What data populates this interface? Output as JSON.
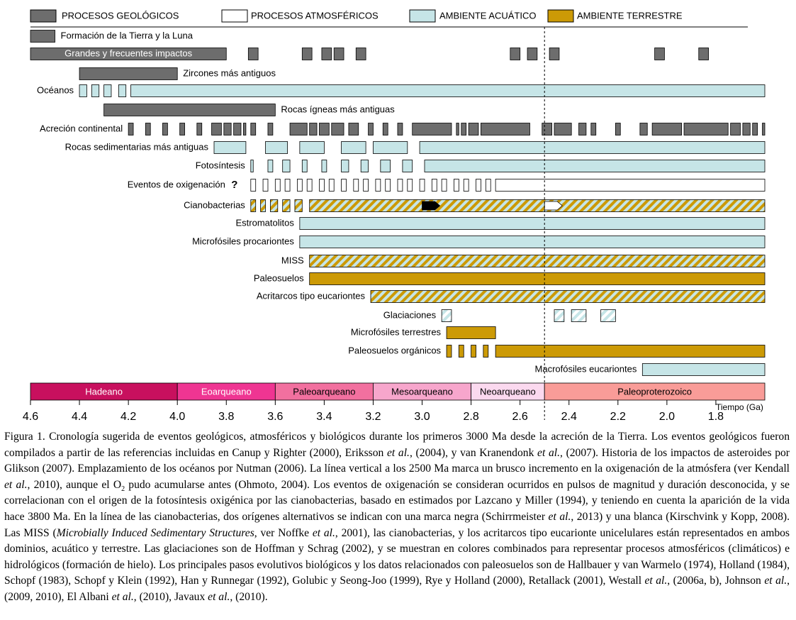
{
  "chart_data": {
    "type": "timeline",
    "xlabel": "Tiempo (Ga)",
    "xlim": [
      4.6,
      1.6
    ],
    "xticks": [
      4.6,
      4.4,
      4.2,
      {
        "value": 4.0,
        "label": "4.0"
      },
      3.8,
      3.6,
      3.4,
      3.2,
      {
        "value": 3.0,
        "label": "3.0"
      },
      2.8,
      2.6,
      2.4,
      2.2,
      {
        "value": 2.0,
        "label": "2.0"
      },
      1.8
    ],
    "reference_line": 2.5,
    "legend": [
      {
        "key": "geo",
        "label": "PROCESOS GEOLÓGICOS",
        "color": "#6d6d6d"
      },
      {
        "key": "atm",
        "label": "PROCESOS ATMOSFÉRICOS",
        "color": "#ffffff"
      },
      {
        "key": "aq",
        "label": "AMBIENTE ACUÁTICO",
        "color": "#c6e5e7"
      },
      {
        "key": "ter",
        "label": "AMBIENTE TERRESTRE",
        "color": "#cc9a06"
      }
    ],
    "rows": [
      {
        "label": "Formación de la Tierra y la Luna",
        "label_pos": "right",
        "style": [
          "geo"
        ],
        "segments": [
          [
            4.6,
            4.5
          ]
        ]
      },
      {
        "label": "Grandes y frecuentes impactos",
        "label_pos": "inside",
        "style": [
          "geo"
        ],
        "segments": [
          [
            4.6,
            3.8
          ],
          [
            3.71,
            3.67
          ],
          [
            3.49,
            3.45
          ],
          [
            3.41,
            3.37
          ],
          [
            3.36,
            3.32
          ],
          [
            3.27,
            3.23
          ],
          [
            2.64,
            2.6
          ],
          [
            2.57,
            2.53
          ],
          [
            2.48,
            2.44
          ],
          [
            2.05,
            2.01
          ],
          [
            1.87,
            1.83
          ]
        ]
      },
      {
        "label": "Zircones más antiguos",
        "label_pos": "right",
        "style": [
          "geo"
        ],
        "segments": [
          [
            4.4,
            4.0
          ]
        ]
      },
      {
        "label": "Océanos",
        "label_pos": "left",
        "style": [
          "aq"
        ],
        "segments": [
          [
            4.4,
            4.37
          ],
          [
            4.35,
            4.32
          ],
          [
            4.3,
            4.27
          ],
          [
            4.24,
            4.21
          ],
          [
            4.19,
            1.6
          ]
        ]
      },
      {
        "label": "Rocas ígneas más antiguas",
        "label_pos": "right",
        "style": [
          "geo"
        ],
        "segments": [
          [
            4.3,
            3.6
          ]
        ]
      },
      {
        "label": "Acreción continental",
        "label_pos": "left",
        "style": [
          "geo"
        ],
        "segments": [
          [
            4.2,
            4.18
          ],
          [
            4.13,
            4.11
          ],
          [
            4.06,
            4.04
          ],
          [
            3.99,
            3.97
          ],
          [
            3.92,
            3.9
          ],
          [
            3.86,
            3.82
          ],
          [
            3.81,
            3.78
          ],
          [
            3.77,
            3.74
          ],
          [
            3.73,
            3.72
          ],
          [
            3.7,
            3.68
          ],
          [
            3.63,
            3.61
          ],
          [
            3.54,
            3.47
          ],
          [
            3.46,
            3.43
          ],
          [
            3.42,
            3.38
          ],
          [
            3.37,
            3.32
          ],
          [
            3.3,
            3.26
          ],
          [
            3.22,
            3.2
          ],
          [
            3.16,
            3.14
          ],
          [
            3.1,
            3.08
          ],
          [
            3.04,
            2.88
          ],
          [
            2.86,
            2.85
          ],
          [
            2.84,
            2.82
          ],
          [
            2.81,
            2.77
          ],
          [
            2.76,
            2.56
          ],
          [
            2.51,
            2.47
          ],
          [
            2.46,
            2.39
          ],
          [
            2.36,
            2.33
          ],
          [
            2.31,
            2.29
          ],
          [
            2.21,
            2.19
          ],
          [
            2.11,
            2.08
          ],
          [
            2.06,
            1.94
          ],
          [
            1.93,
            1.75
          ],
          [
            1.74,
            1.7
          ],
          [
            1.69,
            1.66
          ],
          [
            1.65,
            1.63
          ],
          [
            1.61,
            1.6
          ]
        ]
      },
      {
        "label": "Rocas sedimentarias más antiguas",
        "label_pos": "left",
        "style": [
          "aq"
        ],
        "segments": [
          [
            3.85,
            3.72
          ],
          [
            3.64,
            3.55
          ],
          [
            3.5,
            3.4
          ],
          [
            3.33,
            3.23
          ],
          [
            3.2,
            3.06
          ],
          [
            3.01,
            1.6
          ]
        ]
      },
      {
        "label": "Fotosíntesis",
        "label_pos": "left",
        "style": [
          "aq"
        ],
        "segments": [
          [
            3.7,
            3.69
          ],
          [
            3.63,
            3.61
          ],
          [
            3.57,
            3.54
          ],
          [
            3.49,
            3.47
          ],
          [
            3.41,
            3.39
          ],
          [
            3.33,
            3.3
          ],
          [
            3.25,
            3.22
          ],
          [
            3.17,
            3.13
          ],
          [
            3.08,
            3.04
          ],
          [
            2.99,
            1.6
          ]
        ]
      },
      {
        "label": "Eventos de oxigenación",
        "note": "?",
        "label_pos": "left",
        "style": [
          "atm"
        ],
        "segments": [
          [
            3.7,
            3.68
          ],
          [
            3.65,
            3.63
          ],
          [
            3.6,
            3.58
          ],
          [
            3.56,
            3.54
          ],
          [
            3.51,
            3.49
          ],
          [
            3.47,
            3.45
          ],
          [
            3.42,
            3.4
          ],
          [
            3.38,
            3.36
          ],
          [
            3.33,
            3.31
          ],
          [
            3.28,
            3.26
          ],
          [
            3.24,
            3.22
          ],
          [
            3.19,
            3.17
          ],
          [
            3.15,
            3.13
          ],
          [
            3.1,
            3.08
          ],
          [
            3.06,
            3.04
          ],
          [
            3.01,
            2.99
          ],
          [
            2.96,
            2.94
          ],
          [
            2.92,
            2.9
          ],
          [
            2.87,
            2.85
          ],
          [
            2.83,
            2.81
          ],
          [
            2.78,
            2.76
          ],
          [
            2.74,
            2.72
          ],
          [
            2.7,
            1.6
          ]
        ]
      },
      {
        "label": "Cianobacterias",
        "label_pos": "left",
        "style": [
          "aq",
          "ter"
        ],
        "segments": [
          [
            3.7,
            3.68
          ],
          [
            3.66,
            3.64
          ],
          [
            3.62,
            3.59
          ],
          [
            3.57,
            3.54
          ],
          [
            3.52,
            3.49
          ],
          [
            3.46,
            1.6
          ]
        ],
        "markers": [
          {
            "x": 3.0,
            "color": "#000000"
          },
          {
            "x": 2.5,
            "color": "#ffffff"
          }
        ]
      },
      {
        "label": "Estromatolitos",
        "label_pos": "left",
        "style": [
          "aq"
        ],
        "segments": [
          [
            3.5,
            1.6
          ]
        ]
      },
      {
        "label": "Microfósiles procariontes",
        "label_pos": "left",
        "style": [
          "aq"
        ],
        "segments": [
          [
            3.5,
            1.6
          ]
        ]
      },
      {
        "label": "MISS",
        "label_pos": "left",
        "style": [
          "aq",
          "ter"
        ],
        "segments": [
          [
            3.46,
            1.6
          ]
        ]
      },
      {
        "label": "Paleosuelos",
        "label_pos": "left",
        "style": [
          "ter"
        ],
        "segments": [
          [
            3.46,
            1.6
          ]
        ]
      },
      {
        "label": "Acritarcos tipo eucariontes",
        "label_pos": "left",
        "style": [
          "aq",
          "ter"
        ],
        "segments": [
          [
            3.21,
            1.6
          ]
        ]
      },
      {
        "label": "Glaciaciones",
        "label_pos": "left",
        "style": [
          "aq",
          "atm"
        ],
        "segments": [
          [
            2.92,
            2.88
          ],
          [
            2.46,
            2.42
          ],
          [
            2.39,
            2.33
          ],
          [
            2.27,
            2.21
          ]
        ]
      },
      {
        "label": "Microfósiles terrestres",
        "label_pos": "left",
        "style": [
          "ter"
        ],
        "segments": [
          [
            2.9,
            2.7
          ]
        ]
      },
      {
        "label": "Paleosuelos orgánicos",
        "label_pos": "left",
        "style": [
          "ter"
        ],
        "segments": [
          [
            2.9,
            2.88
          ],
          [
            2.85,
            2.83
          ],
          [
            2.8,
            2.78
          ],
          [
            2.75,
            2.73
          ],
          [
            2.7,
            1.6
          ]
        ]
      },
      {
        "label": "Macrofósiles eucariontes",
        "label_pos": "left",
        "style": [
          "aq"
        ],
        "segments": [
          [
            2.1,
            1.6
          ]
        ]
      }
    ],
    "eras": [
      {
        "name": "Hadeano",
        "start": 4.6,
        "end": 4.0,
        "color": "#c8105e"
      },
      {
        "name": "Eoarqueano",
        "start": 4.0,
        "end": 3.6,
        "color": "#ef3592"
      },
      {
        "name": "Paleoarqueano",
        "start": 3.6,
        "end": 3.2,
        "color": "#f2709f"
      },
      {
        "name": "Mesoarqueano",
        "start": 3.2,
        "end": 2.8,
        "color": "#f7a6cc"
      },
      {
        "name": "Neoarqueano",
        "start": 2.8,
        "end": 2.5,
        "color": "#fbd9ef"
      },
      {
        "name": "Paleoproterozoico",
        "start": 2.5,
        "end": 1.6,
        "color": "#f99c98"
      }
    ],
    "caption": [
      "Figura 1. Cronología sugerida de eventos geológicos, atmosféricos y biológicos durante los primeros 3000 Ma desde la acreción de la Tierra. Los eventos geológicos fueron compilados a partir de las referencias incluidas en Canup y Righter (2000), Eriksson ",
      {
        "i": "et al."
      },
      ", (2004), y van Kranendonk ",
      {
        "i": "et al."
      },
      ", (2007). Historia de los impactos de asteroides por Glikson (2007). Emplazamiento de los océanos por Nutman (2006). La línea vertical a los 2500 Ma marca un brusco incremento en la oxigenación de la atmósfera (ver Kendall ",
      {
        "i": "et al."
      },
      ", 2010), aunque el O",
      {
        "sub": "2"
      },
      " pudo acumularse antes (Ohmoto, 2004). Los eventos de oxigenación se consideran ocurridos en pulsos de magnitud y duración desconocida, y se correlacionan con el origen de la fotosíntesis oxigénica por las cianobacterias, basado en estimados por Lazcano y Miller (1994), y teniendo en cuenta la aparición de la vida hace 3800 Ma. En la línea de las cianobacterias, dos orígenes alternativos se indican con una marca negra (Schirrmeister ",
      {
        "i": "et al."
      },
      ", 2013) y una blanca (Kirschvink y Kopp, 2008). Las MISS (",
      {
        "i": "Microbially Induced Sedimentary Structures"
      },
      ", ver Noffke ",
      {
        "i": "et al."
      },
      ", 2001), las cianobacterias, y los acritarcos tipo eucarionte unicelulares están representados en ambos dominios, acuático y terrestre. Las glaciaciones son de Hoffman y Schrag (2002), y se muestran en colores combinados para representar procesos atmosféricos (climáticos) e hidrológicos (formación de hielo). Los principales pasos evolutivos biológicos y los datos relacionados con paleosuelos son de Hallbauer y van Warmelo (1974), Holland (1984), Schopf (1983), Schopf y Klein (1992), Han y Runnegar (1992), Golubic y Seong-Joo (1999), Rye y Holland (2000), Retallack (2001), Westall ",
      {
        "i": "et al."
      },
      ", (2006a, b), Johnson ",
      {
        "i": "et al."
      },
      ", (2009, 2010), El Albani ",
      {
        "i": "et al."
      },
      ", (2010), Javaux ",
      {
        "i": "et al."
      },
      ", (2010)."
    ]
  }
}
